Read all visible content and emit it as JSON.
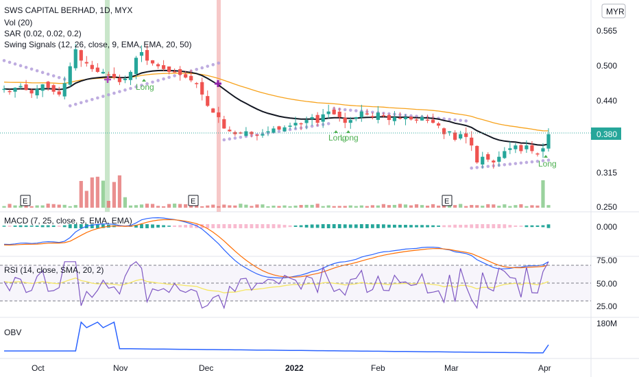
{
  "header": {
    "title": "SWS CAPITAL BERHAD, 1D, MYX",
    "currency": "MYR"
  },
  "indicators": {
    "vol": "Vol (20)",
    "sar": "SAR (0.02, 0.02, 0.2)",
    "swing": "Swing Signals (12, 26, close, 9, EMA, EMA, 20, 50)",
    "macd": "MACD (7, 25, close, 5, EMA, EMA)",
    "rsi": "RSI (14, close, SMA, 20, 2)",
    "obv": "OBV"
  },
  "signals": [
    "Long",
    "Long",
    "Long",
    "Long"
  ],
  "earnings_marker": "E",
  "colors": {
    "up": "#26a69a",
    "down": "#ef5350",
    "ema20": "#131722",
    "ema50": "#f7a21b",
    "sar": "#b39ddb",
    "macd": "#2962ff",
    "signal": "#ff6d00",
    "rsi": "#7e57c2",
    "rsi_ma": "#f5e663",
    "obv": "#2962ff",
    "buy_band": "#a5d6a7",
    "sell_band": "#ef9a9a"
  },
  "chart_data": {
    "type": "candlestick",
    "x_labels": [
      "Oct",
      "Nov",
      "Dec",
      "2022",
      "Feb",
      "Mar",
      "Apr"
    ],
    "price_ticks": [
      "0.565",
      "0.500",
      "0.440",
      "0.380",
      "0.315",
      "0.250"
    ],
    "macd_ticks": [
      "0.000"
    ],
    "rsi_ticks": [
      "75.00",
      "50.00",
      "25.00"
    ],
    "obv_ticks": [
      "180M"
    ],
    "last_price": "0.380",
    "close": [
      0.46,
      0.455,
      0.462,
      0.465,
      0.458,
      0.452,
      0.46,
      0.468,
      0.462,
      0.455,
      0.45,
      0.47,
      0.5,
      0.53,
      0.51,
      0.505,
      0.495,
      0.49,
      0.49,
      0.485,
      0.48,
      0.472,
      0.478,
      0.49,
      0.515,
      0.525,
      0.51,
      0.505,
      0.5,
      0.495,
      0.49,
      0.49,
      0.485,
      0.48,
      0.475,
      0.47,
      0.45,
      0.43,
      0.418,
      0.41,
      0.39,
      0.385,
      0.38,
      0.382,
      0.385,
      0.38,
      0.378,
      0.38,
      0.385,
      0.39,
      0.388,
      0.392,
      0.395,
      0.4,
      0.398,
      0.405,
      0.41,
      0.4,
      0.415,
      0.42,
      0.415,
      0.41,
      0.4,
      0.405,
      0.41,
      0.42,
      0.415,
      0.41,
      0.418,
      0.412,
      0.405,
      0.41,
      0.408,
      0.41,
      0.406,
      0.404,
      0.41,
      0.405,
      0.4,
      0.395,
      0.38,
      0.385,
      0.37,
      0.38,
      0.375,
      0.36,
      0.33,
      0.34,
      0.335,
      0.33,
      0.34,
      0.35,
      0.355,
      0.36,
      0.35,
      0.36,
      0.35,
      0.345,
      0.355,
      0.38
    ],
    "earnings_dates": [
      "Oct",
      "Dec",
      "Mar"
    ]
  }
}
